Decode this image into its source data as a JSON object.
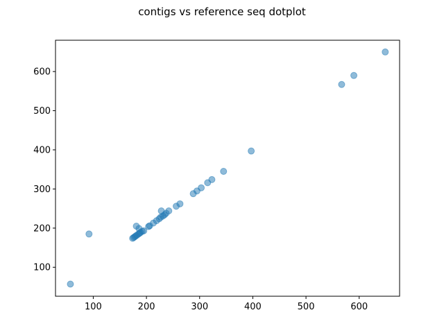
{
  "chart_data": {
    "type": "scatter",
    "title": "contigs vs reference seq dotplot",
    "xlabel": "",
    "ylabel": "",
    "xlim": [
      29,
      676
    ],
    "ylim": [
      26,
      680
    ],
    "xticks": [
      100,
      200,
      300,
      400,
      500,
      600
    ],
    "yticks": [
      100,
      200,
      300,
      400,
      500,
      600
    ],
    "grid": false,
    "marker_color": "#1f77b4",
    "marker_alpha": 0.5,
    "points": [
      {
        "x": 57,
        "y": 57
      },
      {
        "x": 92,
        "y": 185
      },
      {
        "x": 174,
        "y": 174
      },
      {
        "x": 176,
        "y": 176
      },
      {
        "x": 178,
        "y": 178
      },
      {
        "x": 180,
        "y": 180
      },
      {
        "x": 182,
        "y": 182
      },
      {
        "x": 185,
        "y": 185
      },
      {
        "x": 187,
        "y": 187
      },
      {
        "x": 189,
        "y": 189
      },
      {
        "x": 192,
        "y": 192
      },
      {
        "x": 195,
        "y": 193
      },
      {
        "x": 181,
        "y": 205
      },
      {
        "x": 186,
        "y": 199
      },
      {
        "x": 204,
        "y": 204
      },
      {
        "x": 206,
        "y": 206
      },
      {
        "x": 213,
        "y": 213
      },
      {
        "x": 219,
        "y": 219
      },
      {
        "x": 224,
        "y": 224
      },
      {
        "x": 227,
        "y": 228
      },
      {
        "x": 231,
        "y": 231
      },
      {
        "x": 234,
        "y": 234
      },
      {
        "x": 228,
        "y": 244
      },
      {
        "x": 237,
        "y": 238
      },
      {
        "x": 242,
        "y": 244
      },
      {
        "x": 256,
        "y": 256
      },
      {
        "x": 263,
        "y": 262
      },
      {
        "x": 288,
        "y": 288
      },
      {
        "x": 295,
        "y": 295
      },
      {
        "x": 303,
        "y": 303
      },
      {
        "x": 315,
        "y": 316
      },
      {
        "x": 323,
        "y": 324
      },
      {
        "x": 345,
        "y": 345
      },
      {
        "x": 397,
        "y": 397
      },
      {
        "x": 567,
        "y": 567
      },
      {
        "x": 590,
        "y": 590
      },
      {
        "x": 649,
        "y": 650
      }
    ]
  }
}
